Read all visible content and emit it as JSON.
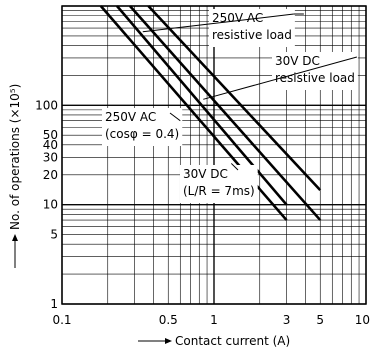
{
  "chart_data": {
    "type": "line",
    "title": "",
    "xlabel": "Contact current (A)",
    "ylabel": "No. of operations (×10⁵)",
    "xscale": "log",
    "yscale": "log",
    "xlim": [
      0.1,
      10
    ],
    "ylim": [
      1,
      1000
    ],
    "grid": true,
    "x_ticks": [
      {
        "value": 0.1,
        "label": "0.1"
      },
      {
        "value": 0.5,
        "label": "0.5"
      },
      {
        "value": 1,
        "label": "1"
      },
      {
        "value": 3,
        "label": "3"
      },
      {
        "value": 5,
        "label": "5"
      },
      {
        "value": 10,
        "label": "10"
      }
    ],
    "y_ticks": [
      {
        "value": 1,
        "label": "1"
      },
      {
        "value": 5,
        "label": "5"
      },
      {
        "value": 10,
        "label": "10"
      },
      {
        "value": 20,
        "label": "20"
      },
      {
        "value": 30,
        "label": "30"
      },
      {
        "value": 40,
        "label": "40"
      },
      {
        "value": 50,
        "label": "50"
      },
      {
        "value": 100,
        "label": "100"
      }
    ],
    "series": [
      {
        "name": "250V AC (cosφ = 0.4)",
        "x": [
          0.18,
          3.0
        ],
        "y": [
          1000,
          7
        ]
      },
      {
        "name": "30V DC (L/R = 7ms)",
        "x": [
          0.23,
          3.0
        ],
        "y": [
          1000,
          10
        ]
      },
      {
        "name": "250V AC resistive load",
        "x": [
          0.28,
          5.0
        ],
        "y": [
          1000,
          7
        ]
      },
      {
        "name": "30V DC resistive load",
        "x": [
          0.37,
          5.0
        ],
        "y": [
          1000,
          14
        ]
      }
    ],
    "annotations": [
      {
        "id": "ann-250vac-resistive",
        "lines": [
          "250V AC",
          "resistive load"
        ],
        "target": {
          "x": 0.34,
          "y": 550
        }
      },
      {
        "id": "ann-30vdc-resistive",
        "lines": [
          "30V DC",
          "resistive load"
        ],
        "target": {
          "x": 0.85,
          "y": 115
        }
      },
      {
        "id": "ann-250vac-cos",
        "lines": [
          "250V AC",
          "(cosφ = 0.4)"
        ],
        "target": {
          "x": 0.6,
          "y": 70
        }
      },
      {
        "id": "ann-30vdc-lr",
        "lines": [
          "30V DC",
          "(L/R = 7ms)"
        ],
        "target": {
          "x": 1.3,
          "y": 26
        }
      }
    ]
  }
}
